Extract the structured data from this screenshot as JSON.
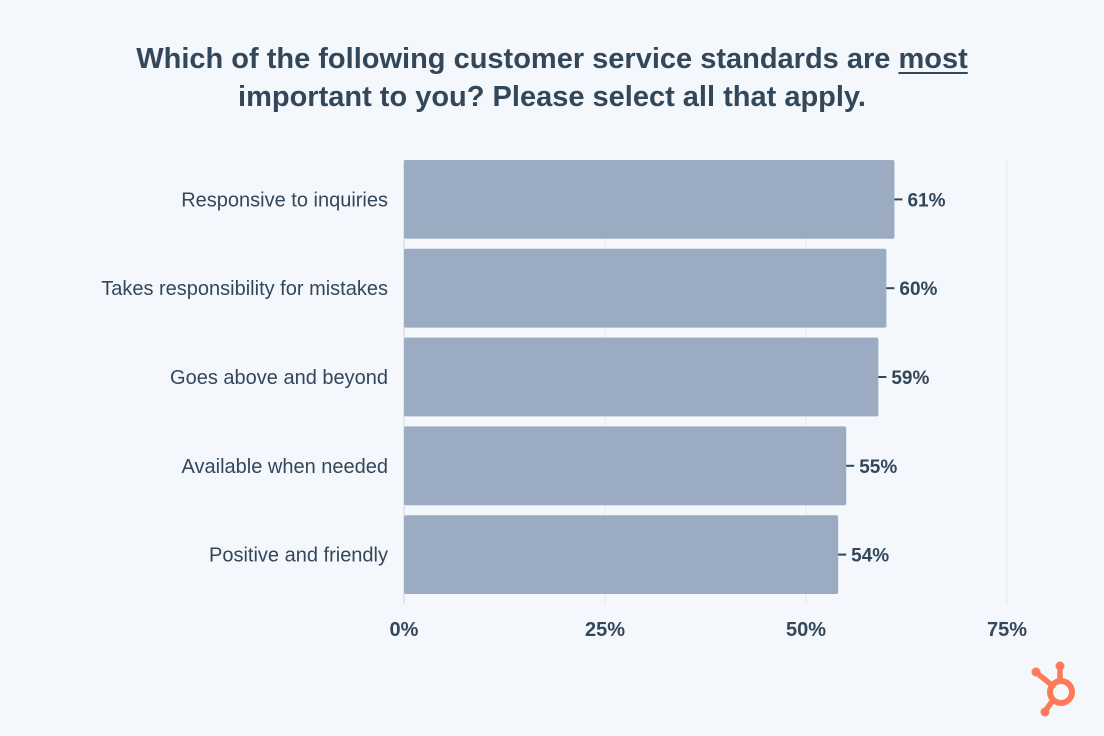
{
  "title": {
    "line1_prefix": "Which of the following customer service standards are ",
    "line1_emphasis": "most",
    "line2": "important to you? Please select all that apply."
  },
  "colors": {
    "background": "#f4f7fb",
    "bar": "#9aabc2",
    "text": "#33475b",
    "grid": "#e3e8ef",
    "brand": "#ff7a59"
  },
  "logo": {
    "icon": "hubspot-sprocket-icon"
  },
  "chart_data": {
    "type": "bar",
    "orientation": "horizontal",
    "categories": [
      "Responsive to inquiries",
      "Takes responsibility for mistakes",
      "Goes above and beyond",
      "Available when needed",
      "Positive and friendly"
    ],
    "values": [
      61,
      60,
      59,
      55,
      54
    ],
    "value_labels": [
      "61%",
      "60%",
      "59%",
      "55%",
      "54%"
    ],
    "xlim": [
      0,
      75
    ],
    "xticks": [
      0,
      25,
      50,
      75
    ],
    "xtick_labels": [
      "0%",
      "25%",
      "50%",
      "75%"
    ],
    "grid": true
  }
}
